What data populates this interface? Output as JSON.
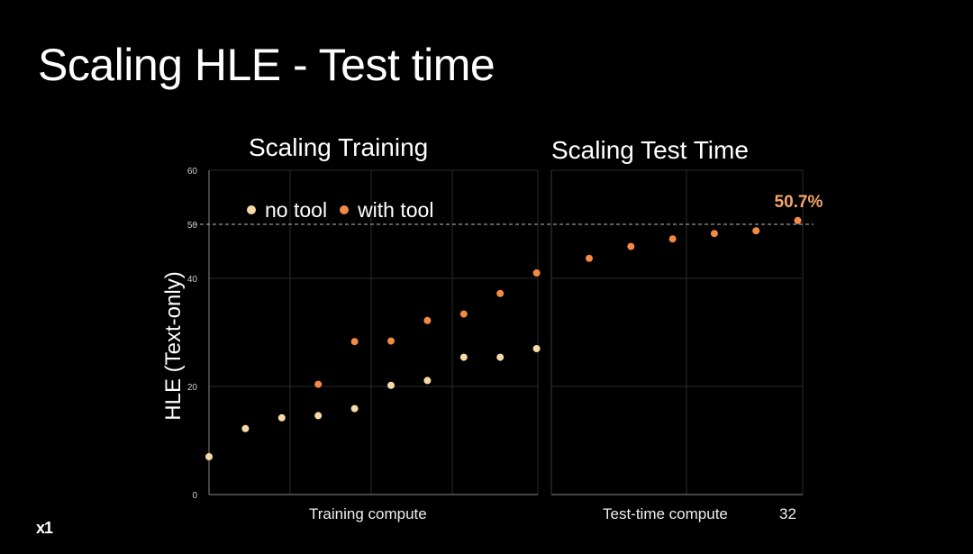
{
  "slide": {
    "title": "Scaling HLE - Test time",
    "logo": "x1"
  },
  "colors": {
    "background": "#000000",
    "no_tool": "#f7d9a8",
    "with_tool": "#f28a44",
    "callout": "#f5a46b",
    "reference_line": "#bbbbbb"
  },
  "chart_data": [
    {
      "type": "scatter",
      "title": "Scaling Training",
      "xlabel": "Training compute",
      "ylabel": "HLE (Text-only)",
      "ylim": [
        0,
        60
      ],
      "yticks": [
        0,
        20,
        40,
        50,
        60
      ],
      "x_tick_labels": [],
      "grid": true,
      "legend": {
        "position": "top-left",
        "entries": [
          "no tool",
          "with tool"
        ]
      },
      "reference_line": {
        "y": 50,
        "style": "dashed"
      },
      "series": [
        {
          "name": "no tool",
          "x": [
            1,
            2,
            3,
            4,
            5,
            6,
            7,
            8,
            9,
            10
          ],
          "values": [
            7,
            12.2,
            14.2,
            14.6,
            15.9,
            20.2,
            21.1,
            25.4,
            25.4,
            27
          ]
        },
        {
          "name": "with tool",
          "x": [
            4,
            5,
            6,
            7,
            8,
            9,
            10
          ],
          "values": [
            20.4,
            28.3,
            28.4,
            32.2,
            33.4,
            37.2,
            41
          ]
        }
      ]
    },
    {
      "type": "scatter",
      "title": "Scaling Test Time",
      "xlabel": "Test-time compute",
      "ylim": [
        0,
        60
      ],
      "x_tick_labels": [
        "32"
      ],
      "grid": true,
      "reference_line": {
        "y": 50,
        "style": "dashed"
      },
      "annotation": "50.7%",
      "series": [
        {
          "name": "with tool",
          "x": [
            1,
            2,
            3,
            4,
            5,
            6
          ],
          "values": [
            43.7,
            45.9,
            47.3,
            48.3,
            48.8,
            50.7
          ]
        }
      ]
    }
  ]
}
